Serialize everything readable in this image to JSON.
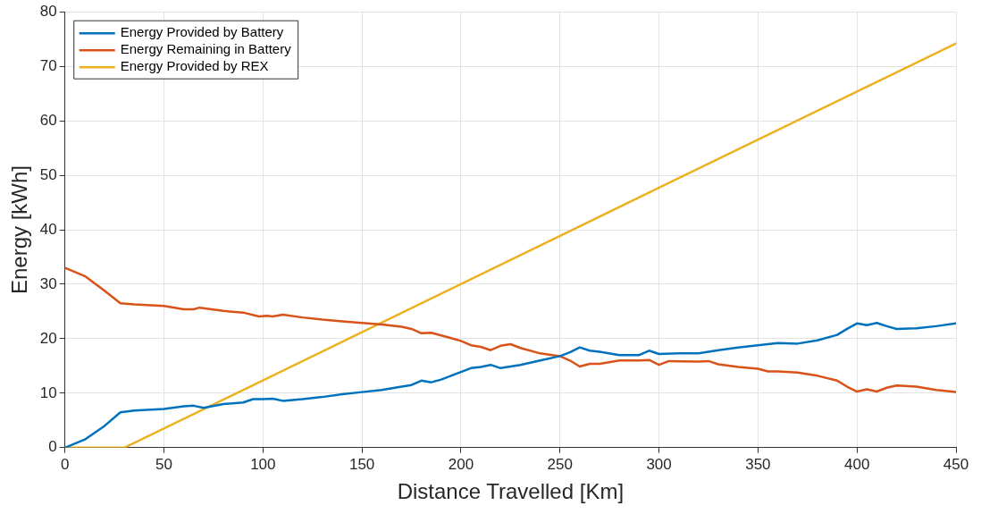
{
  "chart_data": {
    "type": "line",
    "xlabel": "Distance Travelled [Km]",
    "ylabel": "Energy [kWh]",
    "xlim": [
      0,
      450
    ],
    "xticks": [
      0,
      50,
      100,
      150,
      200,
      250,
      300,
      350,
      400,
      450
    ],
    "ylim": [
      0,
      80
    ],
    "yticks": [
      0,
      10,
      20,
      30,
      40,
      50,
      60,
      70,
      80
    ],
    "grid": true,
    "legend": "top left",
    "marker": "none",
    "line_style": "solid",
    "series": [
      {
        "name": "Energy Provided by Battery",
        "color": "#0072bd",
        "x": [
          0,
          10,
          20,
          28,
          35,
          50,
          60,
          65,
          70,
          80,
          90,
          95,
          100,
          105,
          110,
          120,
          130,
          140,
          150,
          160,
          170,
          175,
          180,
          185,
          190,
          195,
          200,
          205,
          210,
          215,
          220,
          230,
          240,
          250,
          255,
          260,
          265,
          270,
          280,
          290,
          295,
          300,
          310,
          320,
          325,
          330,
          340,
          350,
          360,
          370,
          380,
          390,
          395,
          400,
          405,
          410,
          415,
          420,
          430,
          440,
          450
        ],
        "values": [
          0,
          1.5,
          4,
          6.5,
          6.8,
          7.1,
          7.6,
          7.7,
          7.3,
          8.0,
          8.3,
          8.9,
          8.9,
          9.0,
          8.6,
          8.9,
          9.3,
          9.8,
          10.2,
          10.6,
          11.2,
          11.5,
          12.3,
          12.0,
          12.5,
          13.2,
          13.9,
          14.6,
          14.8,
          15.2,
          14.6,
          15.2,
          16.0,
          16.8,
          17.5,
          18.4,
          17.8,
          17.6,
          17.0,
          17.0,
          17.8,
          17.2,
          17.3,
          17.3,
          17.6,
          17.9,
          18.4,
          18.8,
          19.2,
          19.1,
          19.7,
          20.7,
          21.8,
          22.8,
          22.5,
          22.9,
          22.3,
          21.8,
          21.9,
          22.3,
          22.8
        ]
      },
      {
        "name": "Energy Remaining in Battery",
        "color": "#d95319",
        "x": [
          0,
          10,
          20,
          28,
          35,
          50,
          60,
          65,
          68,
          80,
          90,
          98,
          102,
          105,
          110,
          120,
          130,
          140,
          150,
          160,
          170,
          175,
          180,
          185,
          190,
          195,
          200,
          205,
          210,
          215,
          220,
          225,
          230,
          240,
          250,
          255,
          260,
          265,
          270,
          280,
          290,
          295,
          300,
          305,
          320,
          325,
          330,
          340,
          350,
          355,
          360,
          370,
          380,
          390,
          395,
          400,
          405,
          410,
          415,
          420,
          430,
          440,
          450
        ],
        "values": [
          33,
          31.5,
          28.8,
          26.5,
          26.3,
          26.0,
          25.4,
          25.4,
          25.7,
          25.1,
          24.8,
          24.1,
          24.2,
          24.1,
          24.4,
          23.9,
          23.5,
          23.2,
          22.9,
          22.6,
          22.2,
          21.8,
          21.0,
          21.1,
          20.6,
          20.1,
          19.6,
          18.8,
          18.5,
          17.9,
          18.7,
          19.0,
          18.3,
          17.3,
          16.8,
          16.0,
          14.9,
          15.4,
          15.4,
          16.0,
          16.0,
          16.1,
          15.2,
          15.9,
          15.8,
          15.9,
          15.3,
          14.8,
          14.5,
          14.0,
          14.0,
          13.8,
          13.2,
          12.3,
          11.2,
          10.3,
          10.7,
          10.3,
          11.0,
          11.4,
          11.2,
          10.6,
          10.2
        ]
      },
      {
        "name": "Energy Provided by REX",
        "color": "#edb120",
        "x": [
          0,
          30,
          450
        ],
        "values": [
          0,
          0,
          74.2
        ]
      }
    ]
  }
}
